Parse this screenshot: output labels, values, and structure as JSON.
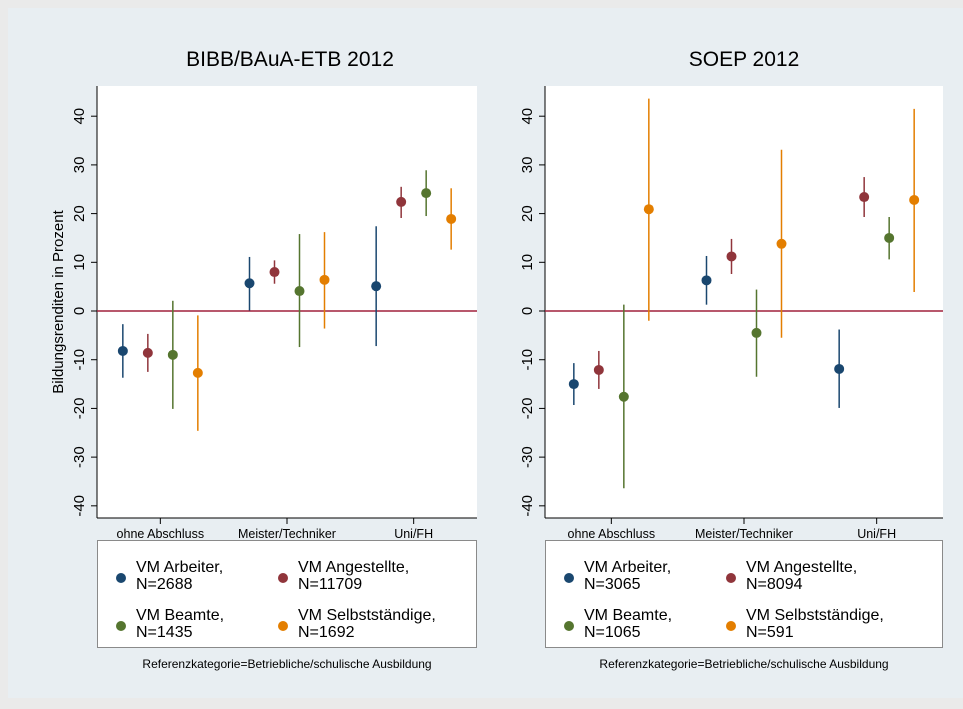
{
  "chart_data": [
    {
      "type": "errorbar",
      "title": "BIBB/BAuA-ETB 2012",
      "y_label": "Bildungsrenditen in Prozent",
      "note": "Referenzkategorie=Betriebliche/schulische Ausbildung",
      "categories": [
        "ohne Abschluss",
        "Meister/Techniker",
        "Uni/FH"
      ],
      "ylim": [
        -42.5,
        46.2
      ],
      "yticks": [
        -40,
        -30,
        -20,
        -10,
        0,
        10,
        20,
        30,
        40
      ],
      "reference_line": 0,
      "reference_color": "#a0203c",
      "series": [
        {
          "name": "VM Arbeiter,\nN=2688",
          "color": "#1a476f",
          "values": [
            -8.2,
            5.7,
            5.1
          ],
          "lower": [
            -13.7,
            0.1,
            -7.2
          ],
          "upper": [
            -2.7,
            11.1,
            17.4
          ]
        },
        {
          "name": "VM Angestellte,\nN=11709",
          "color": "#90353b",
          "values": [
            -8.6,
            8.0,
            22.4
          ],
          "lower": [
            -12.5,
            5.6,
            19.1
          ],
          "upper": [
            -4.7,
            10.4,
            25.5
          ]
        },
        {
          "name": "VM Beamte,\nN=1435",
          "color": "#55752f",
          "values": [
            -9.0,
            4.1,
            24.2
          ],
          "lower": [
            -20.1,
            -7.4,
            19.5
          ],
          "upper": [
            2.1,
            15.8,
            28.9
          ]
        },
        {
          "name": "VM Selbstständige,\nN=1692",
          "color": "#e37e00",
          "values": [
            -12.7,
            6.4,
            18.9
          ],
          "lower": [
            -24.6,
            -3.6,
            12.6
          ],
          "upper": [
            -0.9,
            16.2,
            25.2
          ]
        }
      ]
    },
    {
      "type": "errorbar",
      "title": "SOEP 2012",
      "note": "Referenzkategorie=Betriebliche/schulische Ausbildung",
      "categories": [
        "ohne Abschluss",
        "Meister/Techniker",
        "Uni/FH"
      ],
      "ylim": [
        -42.5,
        46.2
      ],
      "yticks": [
        -40,
        -30,
        -20,
        -10,
        0,
        10,
        20,
        30,
        40
      ],
      "reference_line": 0,
      "reference_color": "#a0203c",
      "series": [
        {
          "name": "VM Arbeiter,\nN=3065",
          "color": "#1a476f",
          "values": [
            -15.0,
            6.3,
            -11.9
          ],
          "lower": [
            -19.3,
            1.3,
            -19.9
          ],
          "upper": [
            -10.7,
            11.3,
            -3.8
          ]
        },
        {
          "name": "VM Angestellte,\nN=8094",
          "color": "#90353b",
          "values": [
            -12.1,
            11.2,
            23.4
          ],
          "lower": [
            -16.0,
            7.6,
            19.3
          ],
          "upper": [
            -8.2,
            14.8,
            27.5
          ]
        },
        {
          "name": "VM Beamte,\nN=1065",
          "color": "#55752f",
          "values": [
            -17.6,
            -4.5,
            15.0
          ],
          "lower": [
            -36.4,
            -13.5,
            10.6
          ],
          "upper": [
            1.3,
            4.4,
            19.3
          ]
        },
        {
          "name": "VM Selbstständige,\nN=591",
          "color": "#e37e00",
          "values": [
            20.9,
            13.8,
            22.8
          ],
          "lower": [
            -2.0,
            -5.5,
            3.9
          ],
          "upper": [
            43.6,
            33.1,
            41.5
          ]
        }
      ]
    }
  ]
}
